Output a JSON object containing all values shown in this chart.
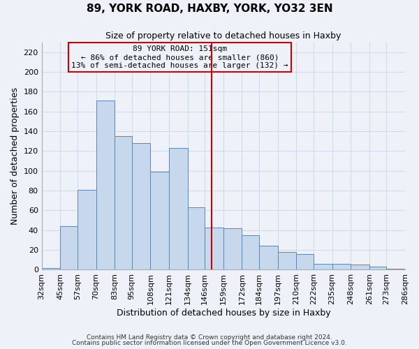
{
  "title": "89, YORK ROAD, HAXBY, YORK, YO32 3EN",
  "subtitle": "Size of property relative to detached houses in Haxby",
  "xlabel": "Distribution of detached houses by size in Haxby",
  "ylabel": "Number of detached properties",
  "footnote1": "Contains HM Land Registry data © Crown copyright and database right 2024.",
  "footnote2": "Contains public sector information licensed under the Open Government Licence v3.0.",
  "bins": [
    32,
    45,
    57,
    70,
    83,
    95,
    108,
    121,
    134,
    146,
    159,
    172,
    184,
    197,
    210,
    222,
    235,
    248,
    261,
    273,
    286
  ],
  "bar_labels": [
    "32sqm",
    "45sqm",
    "57sqm",
    "70sqm",
    "83sqm",
    "95sqm",
    "108sqm",
    "121sqm",
    "134sqm",
    "146sqm",
    "159sqm",
    "172sqm",
    "184sqm",
    "197sqm",
    "210sqm",
    "222sqm",
    "235sqm",
    "248sqm",
    "261sqm",
    "273sqm",
    "286sqm"
  ],
  "values": [
    2,
    44,
    81,
    171,
    135,
    128,
    99,
    123,
    63,
    43,
    42,
    35,
    24,
    18,
    16,
    6,
    6,
    5,
    3,
    1
  ],
  "bar_color": "#c8d8ec",
  "bar_edge_color": "#5588bb",
  "grid_color": "#d0dae8",
  "vline_x": 151,
  "vline_color": "#cc0000",
  "annotation_line1": "89 YORK ROAD: 151sqm",
  "annotation_line2": "← 86% of detached houses are smaller (860)",
  "annotation_line3": "13% of semi-detached houses are larger (132) →",
  "annotation_box_color": "#cc0000",
  "ylim": [
    0,
    230
  ],
  "yticks": [
    0,
    20,
    40,
    60,
    80,
    100,
    120,
    140,
    160,
    180,
    200,
    220
  ],
  "background_color": "#eef2f8"
}
